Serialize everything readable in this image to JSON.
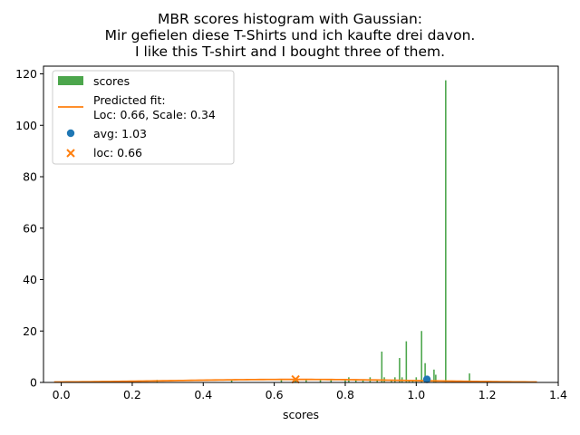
{
  "chart_data": {
    "type": "bar",
    "title_lines": [
      "MBR scores histogram with Gaussian:",
      "Mir gefielen diese T-Shirts und ich kaufte drei davon.",
      "I like this T-shirt and I bought three of them."
    ],
    "xlabel": "scores",
    "ylabel": "",
    "xlim": [
      -0.05,
      1.4
    ],
    "ylim": [
      0,
      123
    ],
    "xticks": [
      0.0,
      0.2,
      0.4,
      0.6,
      0.8,
      1.0,
      1.2,
      1.4
    ],
    "xtick_labels": [
      "0.0",
      "0.2",
      "0.4",
      "0.6",
      "0.8",
      "1.0",
      "1.2",
      "1.4"
    ],
    "yticks": [
      0,
      20,
      40,
      60,
      80,
      100,
      120
    ],
    "ytick_labels": [
      "0",
      "20",
      "40",
      "60",
      "80",
      "100",
      "120"
    ],
    "grid": false,
    "legend_position": "top-left",
    "histogram": {
      "name": "scores",
      "color": "#4ca64c",
      "bin_width": 0.004,
      "bars": [
        {
          "x": 0.27,
          "count": 1
        },
        {
          "x": 0.48,
          "count": 1
        },
        {
          "x": 0.62,
          "count": 1
        },
        {
          "x": 0.66,
          "count": 1
        },
        {
          "x": 0.69,
          "count": 1
        },
        {
          "x": 0.73,
          "count": 1
        },
        {
          "x": 0.76,
          "count": 1
        },
        {
          "x": 0.8,
          "count": 1
        },
        {
          "x": 0.81,
          "count": 2
        },
        {
          "x": 0.83,
          "count": 1
        },
        {
          "x": 0.85,
          "count": 1
        },
        {
          "x": 0.87,
          "count": 2
        },
        {
          "x": 0.89,
          "count": 1
        },
        {
          "x": 0.903,
          "count": 12
        },
        {
          "x": 0.91,
          "count": 2
        },
        {
          "x": 0.93,
          "count": 1
        },
        {
          "x": 0.94,
          "count": 2
        },
        {
          "x": 0.953,
          "count": 9.5
        },
        {
          "x": 0.96,
          "count": 2
        },
        {
          "x": 0.972,
          "count": 16
        },
        {
          "x": 0.98,
          "count": 1
        },
        {
          "x": 0.99,
          "count": 1
        },
        {
          "x": 1.0,
          "count": 2
        },
        {
          "x": 1.015,
          "count": 20
        },
        {
          "x": 1.025,
          "count": 7.5
        },
        {
          "x": 1.035,
          "count": 2
        },
        {
          "x": 1.05,
          "count": 5
        },
        {
          "x": 1.055,
          "count": 3
        },
        {
          "x": 1.083,
          "count": 117.5
        },
        {
          "x": 1.15,
          "count": 3.5
        }
      ]
    },
    "series": [
      {
        "name": "Predicted fit:\nLoc: 0.66, Scale: 0.34",
        "legend_lines": [
          "Predicted fit:",
          "Loc: 0.66, Scale: 0.34"
        ],
        "type": "line",
        "color": "#ff7f0e",
        "loc": 0.66,
        "scale": 0.34,
        "x_range": [
          -0.02,
          1.34
        ],
        "scale_factor": 1.0
      }
    ],
    "markers": [
      {
        "name": "avg: 1.03",
        "x": 1.03,
        "y": 1.2,
        "marker": "circle",
        "color": "#1f77b4"
      },
      {
        "name": "loc: 0.66",
        "x": 0.66,
        "y": 1.2,
        "marker": "x",
        "color": "#ff7f0e"
      }
    ]
  }
}
